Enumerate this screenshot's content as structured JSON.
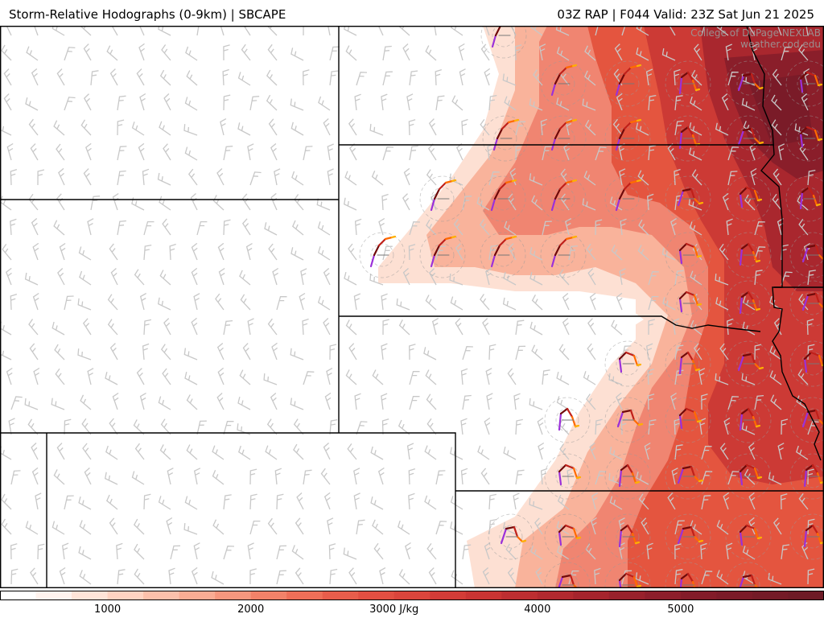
{
  "header": {
    "title_left": "Storm-Relative Hodographs (0-9km) | SBCAPE",
    "title_right": "03Z RAP | F044 Valid: 23Z Sat Jun 21 2025"
  },
  "credit": {
    "line1": "College of DuPage NEXLAB",
    "line2": "weather.cod.edu"
  },
  "colorbar": {
    "unit": "J/kg",
    "ticks": [
      {
        "value": 1000,
        "label": "1000"
      },
      {
        "value": 2000,
        "label": "2000"
      },
      {
        "value": 3000,
        "label": "3000 J/kg"
      },
      {
        "value": 4000,
        "label": "4000"
      },
      {
        "value": 5000,
        "label": "5000"
      }
    ],
    "range": [
      250,
      6000
    ],
    "step": 250,
    "colors": [
      "#ffffff",
      "#fff3ee",
      "#ffe4d8",
      "#ffd3c2",
      "#fcc0ab",
      "#f9ac94",
      "#f6977e",
      "#f28269",
      "#ee6f58",
      "#e85d4b",
      "#e24f42",
      "#db453c",
      "#d33c37",
      "#c93433",
      "#bd2e31",
      "#b2292f",
      "#a6242d",
      "#99212c",
      "#8d1e2b",
      "#831b29",
      "#7b1a28",
      "#741a27",
      "#6e1a26"
    ]
  },
  "map": {
    "hodograph_colors": [
      "#6f0a0a",
      "#c0201a",
      "#ff6a00",
      "#ffb000",
      "#9b30d9"
    ],
    "border_color": "#000000",
    "barb_color": "#c8c8c8"
  }
}
